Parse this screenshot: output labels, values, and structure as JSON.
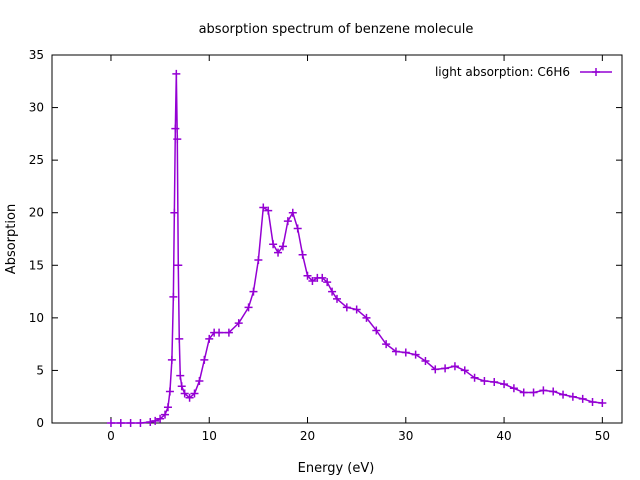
{
  "chart_data": {
    "type": "line",
    "title": "absorption spectrum of benzene molecule",
    "xlabel": "Energy (eV)",
    "ylabel": "Absorption",
    "xlim": [
      -6,
      52
    ],
    "ylim": [
      0,
      35
    ],
    "xticks": [
      0,
      10,
      20,
      30,
      40,
      50
    ],
    "yticks": [
      0,
      5,
      10,
      15,
      20,
      25,
      30,
      35
    ],
    "xtick_labels": [
      "0",
      "10",
      "20",
      "30",
      "40",
      "50"
    ],
    "ytick_labels": [
      "0",
      "5",
      "10",
      "15",
      "20",
      "25",
      "30",
      "35"
    ],
    "grid": false,
    "legend_position": "top-right",
    "series": [
      {
        "name": "light absorption: C6H6",
        "color": "#9400d3",
        "marker": "plus",
        "x": [
          0,
          1,
          2,
          3,
          4,
          4.5,
          5,
          5.5,
          5.8,
          6.0,
          6.2,
          6.35,
          6.45,
          6.55,
          6.65,
          6.75,
          6.85,
          6.95,
          7.05,
          7.2,
          7.5,
          8.0,
          8.5,
          9.0,
          9.5,
          10.0,
          10.5,
          11,
          12,
          13,
          14,
          14.5,
          15,
          15.5,
          16,
          16.5,
          17,
          17.5,
          18,
          18.5,
          19,
          19.5,
          20,
          20.5,
          21,
          21.5,
          22,
          22.5,
          23,
          24,
          25,
          26,
          27,
          28,
          29,
          30,
          31,
          32,
          33,
          34,
          35,
          36,
          37,
          38,
          39,
          40,
          41,
          42,
          43,
          44,
          45,
          46,
          47,
          48,
          49,
          50
        ],
        "y": [
          0,
          0,
          0,
          0,
          0.1,
          0.2,
          0.4,
          0.8,
          1.5,
          3.0,
          6.0,
          12.0,
          20.0,
          28.0,
          33.2,
          27.0,
          15.0,
          8.0,
          4.5,
          3.5,
          2.8,
          2.4,
          2.8,
          4.0,
          6.0,
          8.0,
          8.6,
          8.6,
          8.6,
          9.5,
          11.0,
          12.5,
          15.5,
          20.5,
          20.2,
          17.0,
          16.2,
          16.8,
          19.2,
          20.0,
          18.5,
          16.0,
          14.0,
          13.5,
          13.8,
          13.8,
          13.4,
          12.5,
          11.8,
          11.0,
          10.8,
          10.0,
          8.8,
          7.5,
          6.8,
          6.7,
          6.5,
          5.9,
          5.1,
          5.2,
          5.4,
          5.0,
          4.3,
          4.0,
          3.9,
          3.7,
          3.3,
          2.9,
          2.9,
          3.1,
          3.0,
          2.7,
          2.5,
          2.3,
          2.0,
          1.9
        ]
      }
    ]
  }
}
